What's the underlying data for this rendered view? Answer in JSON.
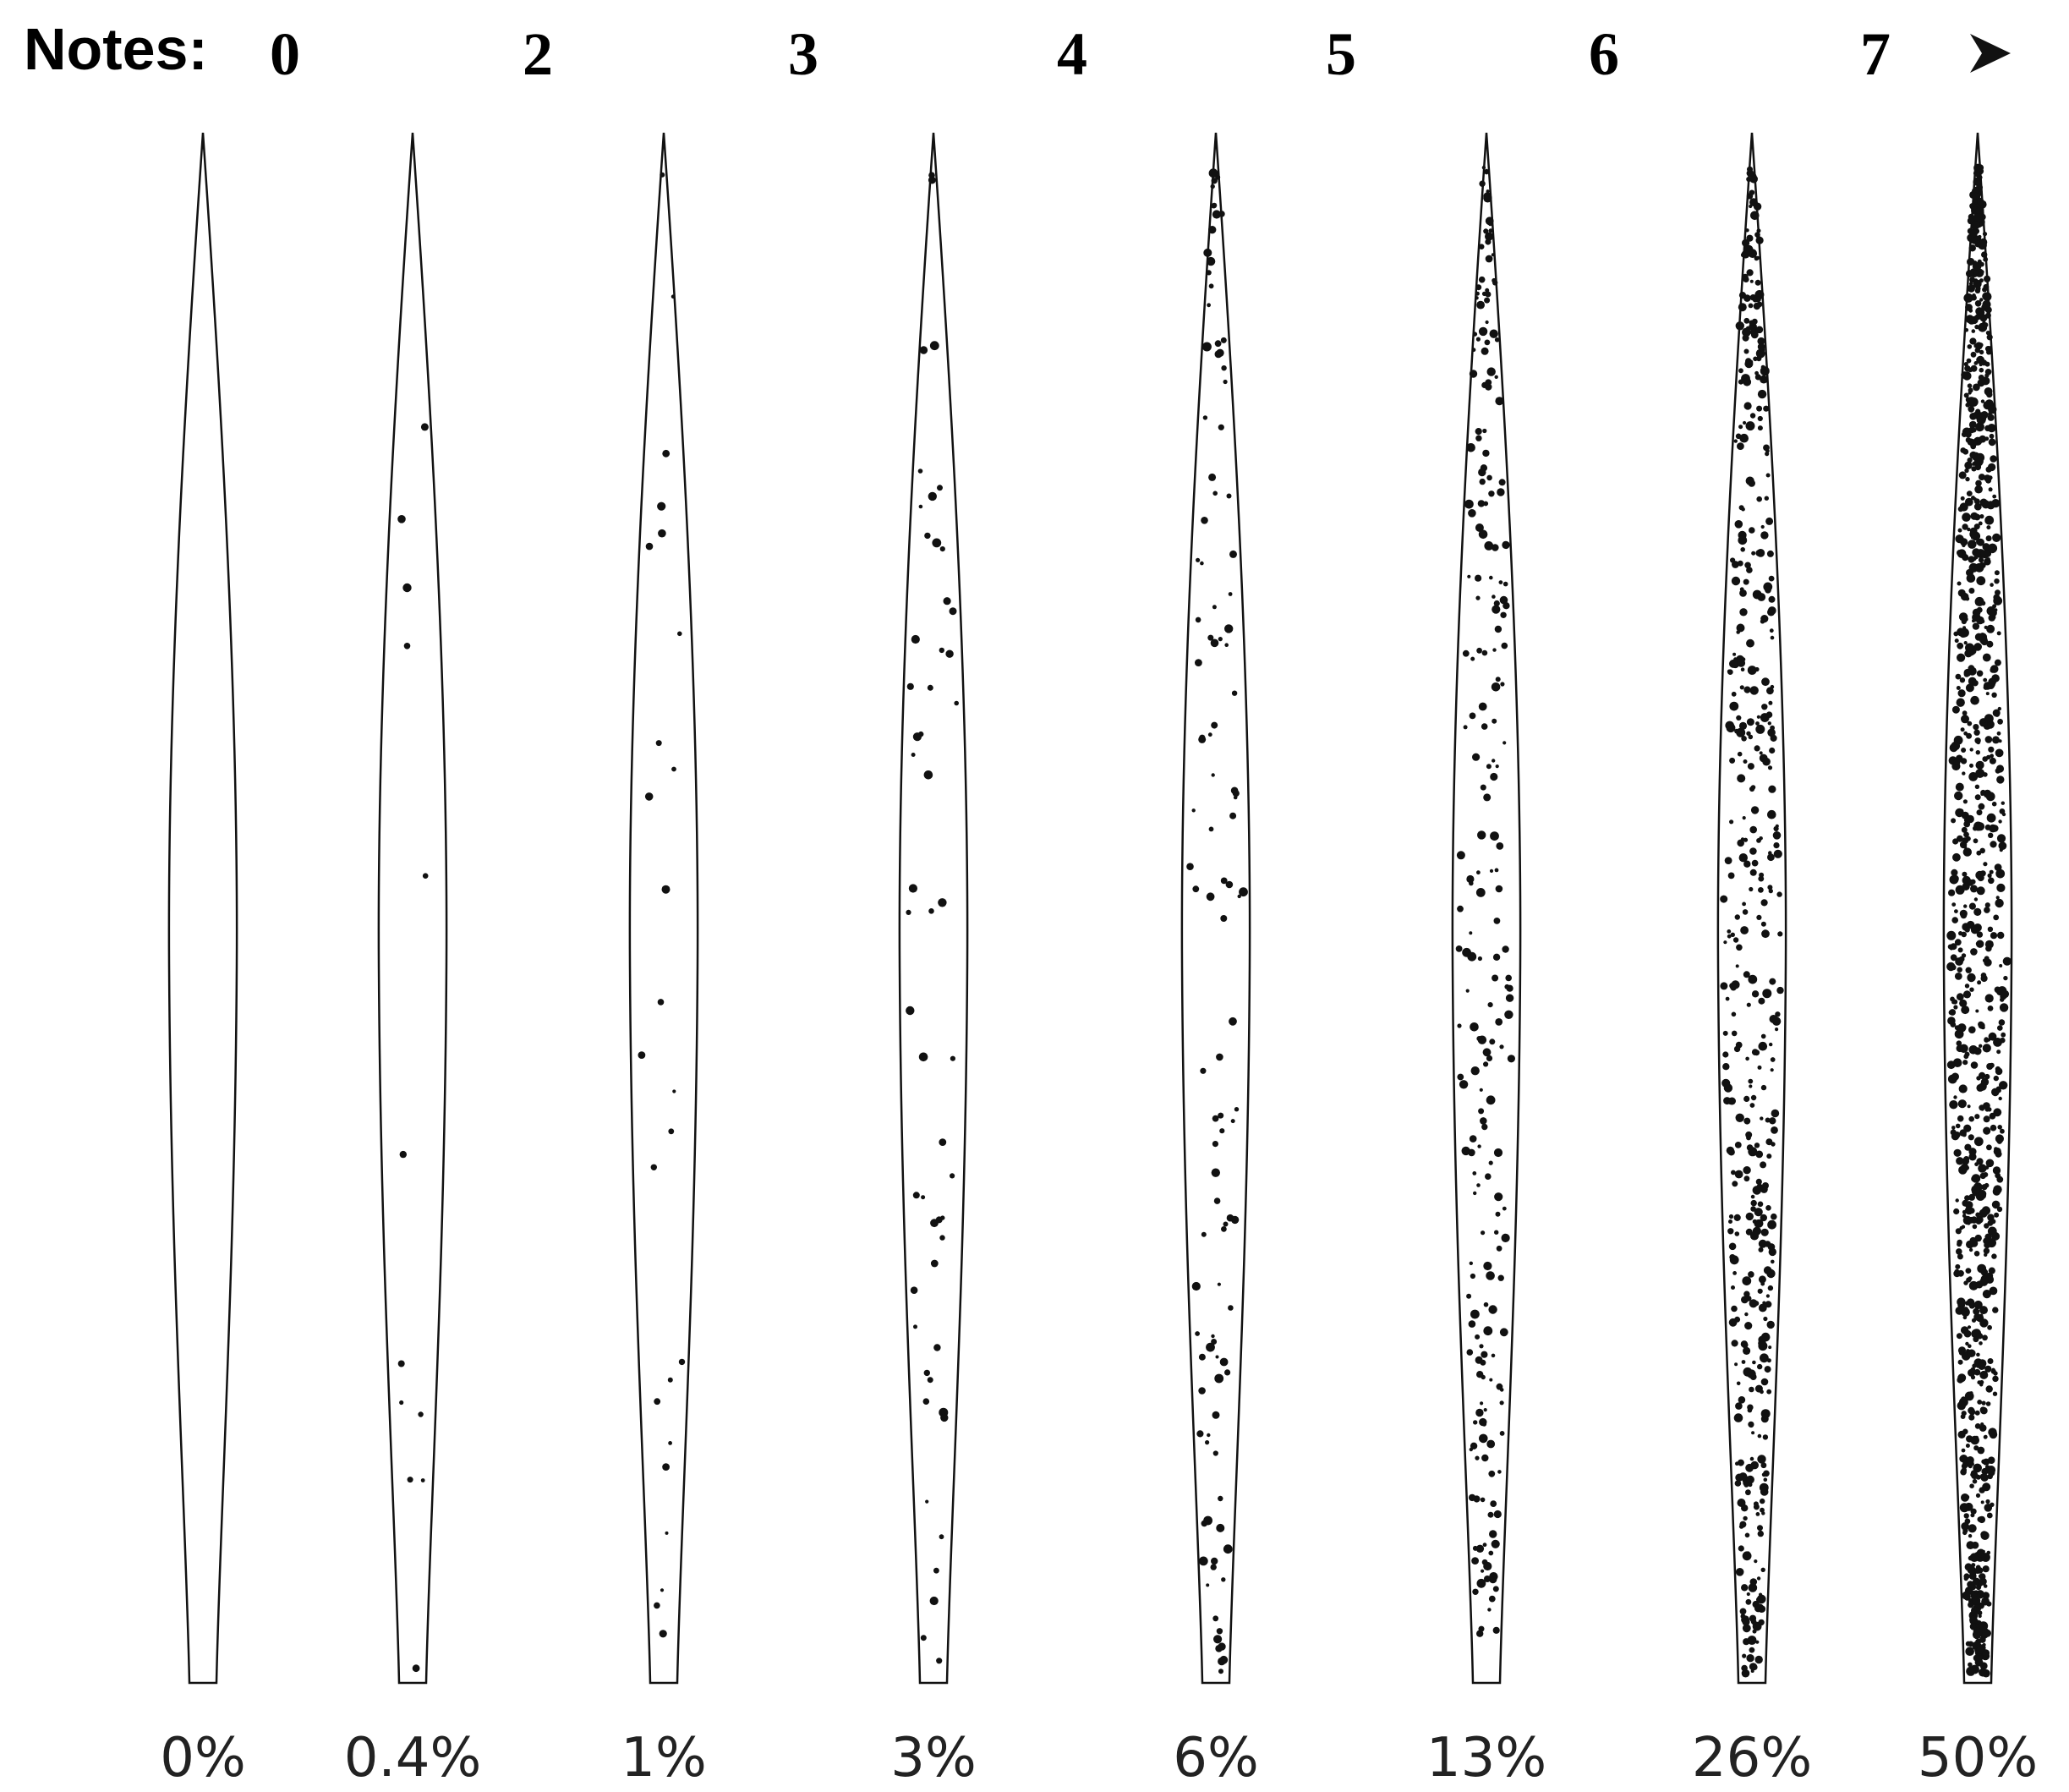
{
  "header": {
    "label": "Notes:",
    "notes": [
      "0",
      "2",
      "3",
      "4",
      "5",
      "6",
      "7"
    ]
  },
  "scale": [
    "0%",
    "0.4%",
    "1%",
    "3%",
    "6%",
    "13%",
    "26%",
    "50%"
  ]
}
